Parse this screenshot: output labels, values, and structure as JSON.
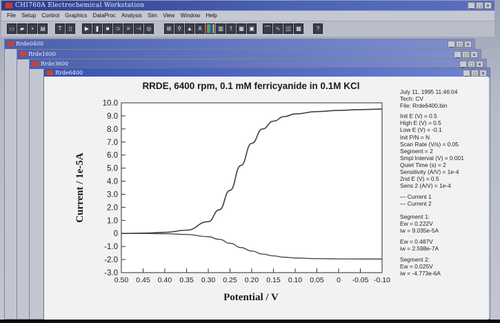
{
  "app": {
    "title": "CHI760A Electrochemical Workstation",
    "window_buttons": [
      "_",
      "□",
      "×"
    ],
    "menu": [
      "File",
      "Setup",
      "Control",
      "Graphics",
      "DataProc",
      "Analysis",
      "Sim",
      "View",
      "Window",
      "Help"
    ],
    "toolbar_icons": [
      "new-file-icon",
      "open-icon",
      "save-icon",
      "print-icon",
      "technique-icon",
      "parameters-icon",
      "run-icon",
      "pause-icon",
      "stop-icon",
      "reverse-icon",
      "ir-comp-icon",
      "filter-icon",
      "cell-icon",
      "graph-icon",
      "zoom-icon",
      "manual-result-icon",
      "peak-icon",
      "color-icon",
      "font-icon",
      "copy-icon",
      "data-list-icon",
      "smooth-icon",
      "derivative-icon",
      "integrate-icon",
      "convolution-icon",
      "help-icon"
    ]
  },
  "windows": [
    {
      "title": "Rrde0400"
    },
    {
      "title": "Rrde1600"
    },
    {
      "title": "Rrde3600"
    },
    {
      "title": "Rrde6400"
    }
  ],
  "info": {
    "date_line": "July 11, 1995   11:46:04",
    "tech": "Tech: CV",
    "file": "File: Rrde6400.bin",
    "params": [
      "Init E (V) = 0.5",
      "High E (V) = 0.5",
      "Low E (V) = -0.1",
      "Init P/N = N",
      "Scan Rate (V/s) = 0.05",
      "Segment = 2",
      "Smpl Interval (V) = 0.001",
      "Quiet Time (s) = 2",
      "Sensitivity (A/V) = 1e-4",
      "2nd E (V) = 0.5",
      "Sens 2 (A/V) = 1e-4"
    ],
    "segment1": {
      "title": "Segment 1:",
      "ew": "Ew = 0.222V",
      "iw": "iw = 9.035e-5A"
    },
    "segment1b": {
      "ew": "Ew = 0.487V",
      "iw": "iw = 2.598e-7A"
    },
    "segment2": {
      "title": "Segment 2:",
      "ew": "Ew = 0.025V",
      "iw": "iw = -4.773e-6A"
    }
  },
  "chart_data": {
    "type": "line",
    "title": "RRDE, 6400 rpm, 0.1 mM ferricyanide in 0.1M KCl",
    "xlabel": "Potential / V",
    "ylabel": "Current / 1e-5A",
    "xlim": [
      0.5,
      -0.1
    ],
    "ylim": [
      -3.0,
      10.0
    ],
    "x_ticks": [
      "0.50",
      "0.45",
      "0.40",
      "0.35",
      "0.30",
      "0.25",
      "0.20",
      "0.15",
      "0.10",
      "0.05",
      "0",
      "-0.05",
      "-0.10"
    ],
    "y_ticks": [
      "10.0",
      "9.0",
      "8.0",
      "7.0",
      "6.0",
      "5.0",
      "4.0",
      "3.0",
      "2.0",
      "1.0",
      "0",
      "-1.0",
      "-2.0",
      "-3.0"
    ],
    "legend_position": "right",
    "series": [
      {
        "name": "Current 1",
        "x": [
          0.5,
          0.45,
          0.4,
          0.35,
          0.3,
          0.275,
          0.25,
          0.225,
          0.2,
          0.175,
          0.15,
          0.125,
          0.1,
          0.05,
          0.0,
          -0.05,
          -0.1
        ],
        "y": [
          0.0,
          0.02,
          0.08,
          0.25,
          0.9,
          1.8,
          3.3,
          5.2,
          6.9,
          8.0,
          8.6,
          8.95,
          9.15,
          9.33,
          9.42,
          9.48,
          9.52
        ]
      },
      {
        "name": "Current 2",
        "x": [
          0.5,
          0.45,
          0.4,
          0.35,
          0.3,
          0.275,
          0.25,
          0.225,
          0.2,
          0.175,
          0.15,
          0.125,
          0.1,
          0.05,
          0.0,
          -0.05,
          -0.1
        ],
        "y": [
          0.0,
          0.0,
          -0.02,
          -0.08,
          -0.25,
          -0.45,
          -0.75,
          -1.08,
          -1.35,
          -1.58,
          -1.72,
          -1.82,
          -1.88,
          -1.93,
          -1.95,
          -1.96,
          -1.96
        ]
      }
    ]
  },
  "colors": {
    "desktop": "#b4bac8",
    "title_bar": "#3a52b2",
    "plot_bg": "#f1f2f3",
    "trace": "#3c3e48"
  }
}
